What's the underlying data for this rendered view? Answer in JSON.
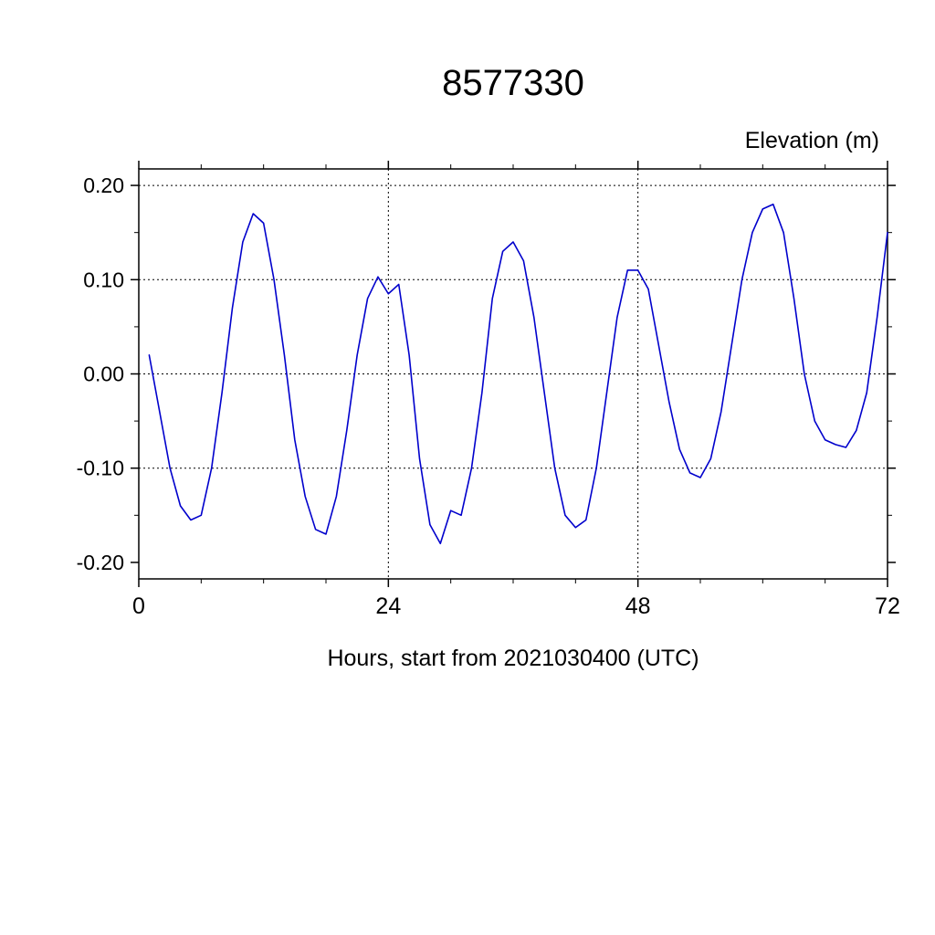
{
  "chart_data": {
    "type": "line",
    "title": "8577330",
    "ylabel": "Elevation (m)",
    "xlabel": "Hours, start from 2021030400 (UTC)",
    "line_color": "#0000CC",
    "grid_style": "dashed",
    "xlim": [
      0,
      72
    ],
    "ylim": [
      -0.2175,
      0.2175
    ],
    "x_ticks": [
      {
        "v": 0,
        "label": "0"
      },
      {
        "v": 24,
        "label": "24"
      },
      {
        "v": 48,
        "label": "48"
      },
      {
        "v": 72,
        "label": "72"
      }
    ],
    "y_ticks": [
      {
        "v": 0.2,
        "label": "0.20"
      },
      {
        "v": 0.1,
        "label": "0.10"
      },
      {
        "v": 0.0,
        "label": "0.00"
      },
      {
        "v": -0.1,
        "label": "-0.10"
      },
      {
        "v": -0.2,
        "label": "-0.20"
      }
    ],
    "x_minor_ticks": [
      6,
      12,
      18,
      30,
      36,
      42,
      54,
      60,
      66
    ],
    "y_minor_ticks": [
      -0.15,
      -0.05,
      0.05,
      0.15
    ],
    "x_gridlines": [
      24,
      48
    ],
    "y_gridlines": [
      0.2,
      0.1,
      0.0,
      -0.1
    ],
    "x": [
      1,
      2,
      3,
      4,
      5,
      6,
      7,
      8,
      9,
      10,
      11,
      12,
      13,
      14,
      15,
      16,
      17,
      18,
      19,
      20,
      21,
      22,
      23,
      24,
      25,
      26,
      27,
      28,
      29,
      30,
      31,
      32,
      33,
      34,
      35,
      36,
      37,
      38,
      39,
      40,
      41,
      42,
      43,
      44,
      45,
      46,
      47,
      48,
      49,
      50,
      51,
      52,
      53,
      54,
      55,
      56,
      57,
      58,
      59,
      60,
      61,
      62,
      63,
      64,
      65,
      66,
      67,
      68,
      69,
      70,
      71,
      72
    ],
    "y": [
      0.02,
      -0.04,
      -0.1,
      -0.14,
      -0.155,
      -0.15,
      -0.1,
      -0.02,
      0.07,
      0.14,
      0.17,
      0.16,
      0.1,
      0.02,
      -0.07,
      -0.13,
      -0.165,
      -0.17,
      -0.13,
      -0.06,
      0.02,
      0.08,
      0.103,
      0.085,
      0.095,
      0.02,
      -0.09,
      -0.16,
      -0.18,
      -0.145,
      -0.15,
      -0.1,
      -0.02,
      0.08,
      0.13,
      0.14,
      0.12,
      0.06,
      -0.02,
      -0.1,
      -0.15,
      -0.163,
      -0.155,
      -0.1,
      -0.02,
      0.06,
      0.11,
      0.11,
      0.09,
      0.03,
      -0.03,
      -0.08,
      -0.105,
      -0.11,
      -0.09,
      -0.04,
      0.03,
      0.1,
      0.15,
      0.175,
      0.18,
      0.15,
      0.08,
      0.0,
      -0.05,
      -0.07,
      -0.075,
      -0.078,
      -0.06,
      -0.02,
      0.06,
      0.15
    ]
  }
}
